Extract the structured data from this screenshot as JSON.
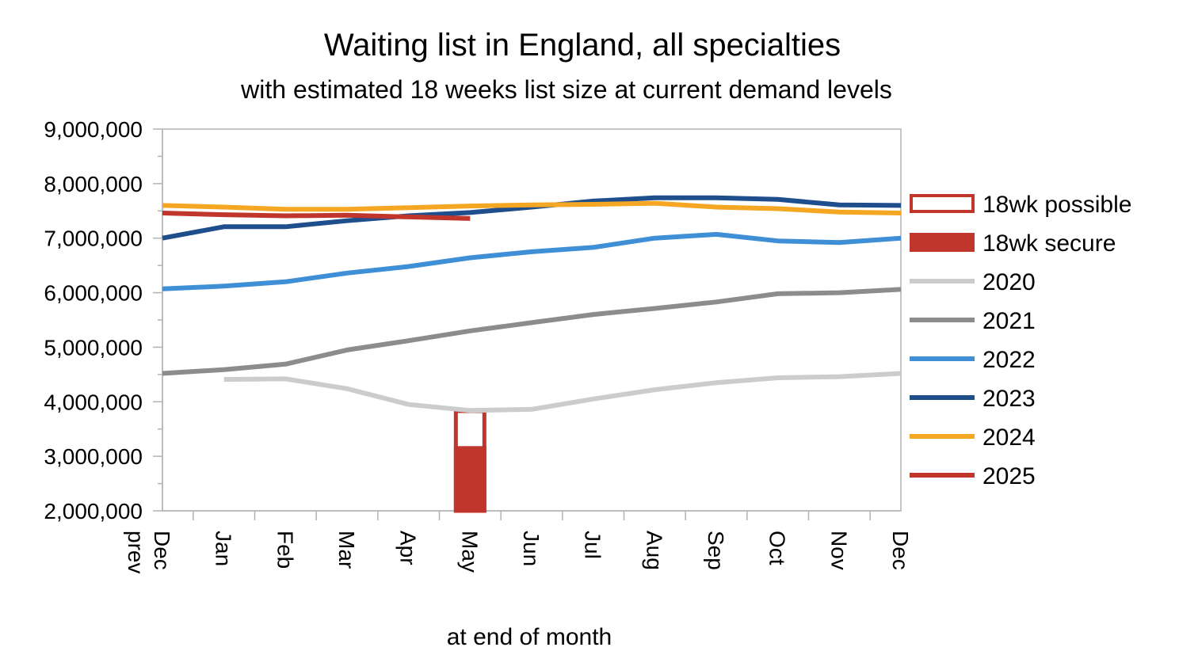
{
  "chart_data": {
    "type": "line",
    "title": "Waiting list in England, all specialties",
    "subtitle": "with estimated 18 weeks list size at current demand levels",
    "xlabel": "at end of month",
    "ylabel": "",
    "categories": [
      "Dec prev",
      "Jan",
      "Feb",
      "Mar",
      "Apr",
      "May",
      "Jun",
      "Jul",
      "Aug",
      "Sep",
      "Oct",
      "Nov",
      "Dec"
    ],
    "ylim": [
      2000000,
      9000000
    ],
    "yticks": [
      {
        "value": 2000000,
        "label": "2,000,000"
      },
      {
        "value": 3000000,
        "label": "3,000,000"
      },
      {
        "value": 4000000,
        "label": "4,000,000"
      },
      {
        "value": 5000000,
        "label": "5,000,000"
      },
      {
        "value": 6000000,
        "label": "6,000,000"
      },
      {
        "value": 7000000,
        "label": "7,000,000"
      },
      {
        "value": 8000000,
        "label": "8,000,000"
      },
      {
        "value": 9000000,
        "label": "9,000,000"
      }
    ],
    "grid": false,
    "legend_position": "right",
    "bars": {
      "category": "May",
      "series": [
        {
          "name": "18wk secure",
          "value": 3150000,
          "style": "filled",
          "color": "#C0362C"
        },
        {
          "name": "18wk possible",
          "value": 3830000,
          "style": "outline",
          "color": "#C0362C"
        }
      ]
    },
    "series": [
      {
        "name": "2020",
        "color": "#CCCCCC",
        "values": [
          null,
          4410000,
          4420000,
          4240000,
          3950000,
          3840000,
          3860000,
          4050000,
          4220000,
          4350000,
          4440000,
          4460000,
          4520000
        ]
      },
      {
        "name": "2021",
        "color": "#8C8C8C",
        "values": [
          4520000,
          4590000,
          4690000,
          4950000,
          5120000,
          5300000,
          5450000,
          5600000,
          5710000,
          5830000,
          5980000,
          6000000,
          6060000
        ]
      },
      {
        "name": "2022",
        "color": "#3E8FD6",
        "values": [
          6070000,
          6120000,
          6200000,
          6360000,
          6480000,
          6640000,
          6750000,
          6830000,
          7000000,
          7070000,
          6950000,
          6920000,
          7000000
        ]
      },
      {
        "name": "2023",
        "color": "#1F4E8C",
        "values": [
          7000000,
          7210000,
          7210000,
          7320000,
          7410000,
          7470000,
          7570000,
          7680000,
          7740000,
          7740000,
          7710000,
          7610000,
          7600000
        ]
      },
      {
        "name": "2024",
        "color": "#F5A623",
        "values": [
          7600000,
          7570000,
          7530000,
          7530000,
          7560000,
          7590000,
          7610000,
          7620000,
          7640000,
          7570000,
          7540000,
          7480000,
          7460000
        ]
      },
      {
        "name": "2025",
        "color": "#C0362C",
        "values": [
          7460000,
          7430000,
          7410000,
          7420000,
          7390000,
          7360000,
          null,
          null,
          null,
          null,
          null,
          null,
          null
        ]
      }
    ]
  }
}
